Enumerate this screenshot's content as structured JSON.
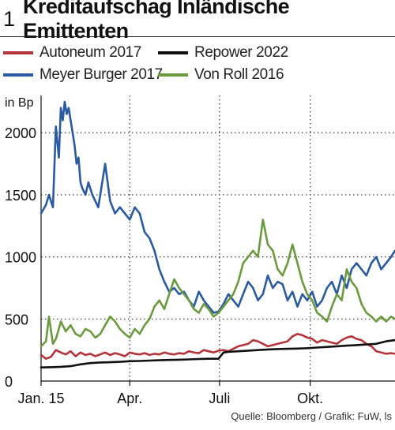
{
  "header": {
    "figure_number": "1",
    "title": "Kreditaufschag Inländische Emittenten"
  },
  "source": "Quelle: Bloomberg / Grafik: FuW, ls",
  "chart_data": {
    "type": "line",
    "title": "Kreditaufschag Inländische Emittenten",
    "ylabel": "in Bp",
    "xlabel": "",
    "ylim": [
      0,
      2300
    ],
    "yticks": [
      0,
      500,
      1000,
      1500,
      2000
    ],
    "xlim": [
      0,
      359
    ],
    "xticks": [
      {
        "label": "Jan. 15",
        "x": 0
      },
      {
        "label": "Apr.",
        "x": 90
      },
      {
        "label": "Juli",
        "x": 181
      },
      {
        "label": "Okt.",
        "x": 273
      }
    ],
    "grid": "dotted",
    "legend_position": "top",
    "series": [
      {
        "name": "Autoneum 2017",
        "color": "#b5333b",
        "x": [
          0,
          5,
          10,
          15,
          20,
          25,
          30,
          35,
          40,
          45,
          50,
          55,
          60,
          65,
          70,
          75,
          80,
          85,
          90,
          95,
          100,
          105,
          110,
          115,
          120,
          125,
          130,
          135,
          140,
          145,
          150,
          155,
          160,
          165,
          170,
          175,
          180,
          185,
          190,
          195,
          200,
          205,
          210,
          215,
          220,
          225,
          230,
          235,
          240,
          245,
          250,
          255,
          260,
          265,
          270,
          275,
          280,
          285,
          290,
          295,
          300,
          305,
          310,
          315,
          320,
          325,
          330,
          335,
          340,
          345,
          350,
          355,
          359
        ],
        "values": [
          210,
          180,
          195,
          250,
          230,
          215,
          240,
          200,
          230,
          210,
          220,
          200,
          215,
          230,
          210,
          225,
          215,
          200,
          230,
          220,
          215,
          225,
          210,
          220,
          215,
          230,
          220,
          215,
          225,
          220,
          240,
          230,
          225,
          250,
          240,
          230,
          245,
          250,
          240,
          260,
          280,
          290,
          300,
          330,
          320,
          300,
          280,
          290,
          300,
          310,
          320,
          360,
          380,
          370,
          350,
          340,
          310,
          330,
          320,
          310,
          300,
          330,
          350,
          360,
          340,
          330,
          300,
          280,
          240,
          230,
          220,
          225,
          220
        ]
      },
      {
        "name": "Repower 2022",
        "color": "#111111",
        "x": [
          0,
          10,
          20,
          30,
          40,
          50,
          60,
          70,
          80,
          90,
          100,
          110,
          120,
          130,
          140,
          150,
          160,
          170,
          175,
          180,
          185,
          190,
          200,
          210,
          220,
          230,
          240,
          250,
          260,
          270,
          280,
          290,
          300,
          310,
          320,
          330,
          340,
          350,
          359
        ],
        "values": [
          110,
          112,
          115,
          120,
          135,
          145,
          150,
          152,
          155,
          160,
          162,
          165,
          168,
          170,
          172,
          175,
          178,
          180,
          180,
          180,
          230,
          235,
          240,
          245,
          250,
          255,
          258,
          260,
          262,
          265,
          270,
          275,
          280,
          285,
          290,
          295,
          300,
          320,
          330
        ]
      },
      {
        "name": "Meyer Burger 2017",
        "color": "#2a5aa2",
        "x": [
          0,
          5,
          8,
          12,
          15,
          18,
          20,
          22,
          24,
          26,
          28,
          30,
          32,
          34,
          36,
          38,
          40,
          42,
          45,
          48,
          52,
          55,
          58,
          62,
          65,
          70,
          75,
          80,
          85,
          90,
          95,
          100,
          105,
          110,
          115,
          120,
          125,
          130,
          135,
          140,
          145,
          150,
          155,
          160,
          165,
          170,
          175,
          180,
          185,
          190,
          195,
          200,
          205,
          210,
          215,
          220,
          225,
          230,
          235,
          240,
          245,
          250,
          255,
          260,
          265,
          270,
          275,
          280,
          285,
          290,
          295,
          300,
          305,
          310,
          315,
          320,
          325,
          330,
          335,
          340,
          345,
          350,
          355,
          359
        ],
        "values": [
          1350,
          1420,
          1500,
          1400,
          2050,
          1800,
          2200,
          2100,
          2250,
          2150,
          2200,
          2100,
          2000,
          1900,
          1750,
          1800,
          1600,
          1550,
          1500,
          1600,
          1500,
          1450,
          1400,
          1600,
          1750,
          1450,
          1350,
          1400,
          1350,
          1300,
          1400,
          1350,
          1200,
          1150,
          1050,
          900,
          800,
          720,
          750,
          700,
          720,
          650,
          600,
          720,
          650,
          600,
          550,
          560,
          620,
          700,
          650,
          600,
          700,
          800,
          750,
          650,
          700,
          850,
          750,
          800,
          780,
          650,
          720,
          600,
          700,
          650,
          720,
          600,
          650,
          750,
          800,
          700,
          850,
          750,
          900,
          950,
          900,
          850,
          950,
          1000,
          900,
          950,
          1000,
          1050
        ]
      },
      {
        "name": "Von Roll 2016",
        "color": "#6c9a3e",
        "x": [
          0,
          5,
          8,
          12,
          15,
          18,
          20,
          25,
          30,
          35,
          40,
          45,
          50,
          55,
          60,
          65,
          70,
          75,
          80,
          85,
          90,
          95,
          100,
          105,
          110,
          115,
          120,
          125,
          130,
          135,
          140,
          145,
          150,
          155,
          160,
          165,
          170,
          175,
          180,
          185,
          190,
          195,
          200,
          205,
          210,
          215,
          220,
          225,
          230,
          235,
          240,
          245,
          250,
          255,
          260,
          265,
          270,
          275,
          280,
          285,
          290,
          295,
          300,
          305,
          310,
          315,
          320,
          325,
          330,
          335,
          340,
          345,
          350,
          355,
          359
        ],
        "values": [
          280,
          320,
          520,
          300,
          340,
          420,
          480,
          400,
          450,
          380,
          360,
          420,
          400,
          350,
          380,
          450,
          520,
          480,
          420,
          380,
          350,
          420,
          380,
          450,
          500,
          600,
          650,
          580,
          700,
          820,
          750,
          700,
          650,
          580,
          550,
          620,
          580,
          520,
          550,
          600,
          650,
          700,
          800,
          950,
          1000,
          1050,
          1000,
          1300,
          1100,
          1050,
          900,
          850,
          950,
          1100,
          950,
          800,
          700,
          650,
          550,
          520,
          480,
          600,
          700,
          650,
          900,
          800,
          750,
          620,
          550,
          520,
          480,
          520,
          480,
          520,
          500
        ]
      }
    ]
  }
}
